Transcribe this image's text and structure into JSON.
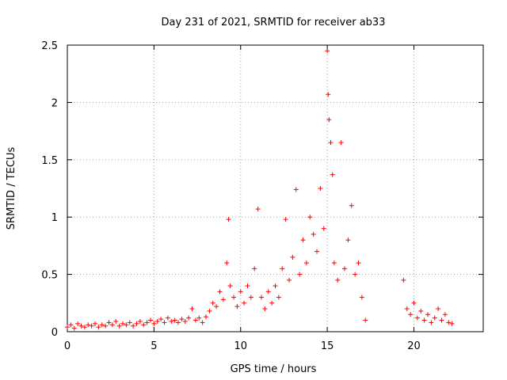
{
  "chart_data": {
    "type": "scatter",
    "title": "Day 231 of 2021, SRMTID for receiver ab33",
    "xlabel": "GPS time / hours",
    "ylabel": "SRMTID / TECUs",
    "xlim": [
      0,
      24
    ],
    "ylim": [
      0,
      2.5
    ],
    "x_ticks": [
      0,
      5,
      10,
      15,
      20
    ],
    "x_tick_labels": [
      "0",
      "5",
      "10",
      "15",
      "20"
    ],
    "y_ticks": [
      0,
      0.5,
      1,
      1.5,
      2,
      2.5
    ],
    "y_tick_labels": [
      "0",
      "0.5",
      "1",
      "1.5",
      "2",
      "2.5"
    ],
    "grid": true,
    "marker": "+",
    "color": "#ff0000",
    "series": [
      {
        "name": "SRMTID",
        "points": [
          [
            0.0,
            0.04
          ],
          [
            0.2,
            0.06
          ],
          [
            0.4,
            0.03
          ],
          [
            0.6,
            0.07
          ],
          [
            0.8,
            0.05
          ],
          [
            1.0,
            0.04
          ],
          [
            1.2,
            0.06
          ],
          [
            1.4,
            0.05
          ],
          [
            1.6,
            0.07
          ],
          [
            1.8,
            0.04
          ],
          [
            2.0,
            0.06
          ],
          [
            2.2,
            0.05
          ],
          [
            2.4,
            0.08
          ],
          [
            2.6,
            0.06
          ],
          [
            2.8,
            0.09
          ],
          [
            3.0,
            0.05
          ],
          [
            3.2,
            0.07
          ],
          [
            3.4,
            0.06
          ],
          [
            3.6,
            0.08
          ],
          [
            3.8,
            0.05
          ],
          [
            4.0,
            0.07
          ],
          [
            4.2,
            0.09
          ],
          [
            4.4,
            0.06
          ],
          [
            4.6,
            0.08
          ],
          [
            4.8,
            0.1
          ],
          [
            5.0,
            0.07
          ],
          [
            5.2,
            0.09
          ],
          [
            5.4,
            0.11
          ],
          [
            5.6,
            0.08
          ],
          [
            5.8,
            0.12
          ],
          [
            6.0,
            0.09
          ],
          [
            6.2,
            0.1
          ],
          [
            6.4,
            0.08
          ],
          [
            6.6,
            0.11
          ],
          [
            6.8,
            0.09
          ],
          [
            7.0,
            0.12
          ],
          [
            7.2,
            0.2
          ],
          [
            7.4,
            0.1
          ],
          [
            7.6,
            0.12
          ],
          [
            7.8,
            0.08
          ],
          [
            8.0,
            0.13
          ],
          [
            8.2,
            0.18
          ],
          [
            8.4,
            0.25
          ],
          [
            8.6,
            0.22
          ],
          [
            8.8,
            0.35
          ],
          [
            9.0,
            0.28
          ],
          [
            9.2,
            0.6
          ],
          [
            9.3,
            0.98
          ],
          [
            9.4,
            0.4
          ],
          [
            9.6,
            0.3
          ],
          [
            9.8,
            0.22
          ],
          [
            10.0,
            0.35
          ],
          [
            10.2,
            0.25
          ],
          [
            10.4,
            0.4
          ],
          [
            10.6,
            0.3
          ],
          [
            10.8,
            0.55
          ],
          [
            11.0,
            1.07
          ],
          [
            11.2,
            0.3
          ],
          [
            11.4,
            0.2
          ],
          [
            11.6,
            0.35
          ],
          [
            11.8,
            0.25
          ],
          [
            12.0,
            0.4
          ],
          [
            12.2,
            0.3
          ],
          [
            12.4,
            0.55
          ],
          [
            12.6,
            0.98
          ],
          [
            12.8,
            0.45
          ],
          [
            13.0,
            0.65
          ],
          [
            13.2,
            1.24
          ],
          [
            13.4,
            0.5
          ],
          [
            13.6,
            0.8
          ],
          [
            13.8,
            0.6
          ],
          [
            14.0,
            1.0
          ],
          [
            14.2,
            0.85
          ],
          [
            14.4,
            0.7
          ],
          [
            14.6,
            1.25
          ],
          [
            14.8,
            0.9
          ],
          [
            15.0,
            2.45
          ],
          [
            15.05,
            2.07
          ],
          [
            15.1,
            1.85
          ],
          [
            15.2,
            1.65
          ],
          [
            15.3,
            1.37
          ],
          [
            15.4,
            0.6
          ],
          [
            15.6,
            0.45
          ],
          [
            15.8,
            1.65
          ],
          [
            16.0,
            0.55
          ],
          [
            16.2,
            0.8
          ],
          [
            16.4,
            1.1
          ],
          [
            16.6,
            0.5
          ],
          [
            16.8,
            0.6
          ],
          [
            17.0,
            0.3
          ],
          [
            17.2,
            0.1
          ],
          [
            19.4,
            0.45
          ],
          [
            19.6,
            0.2
          ],
          [
            19.8,
            0.15
          ],
          [
            20.0,
            0.25
          ],
          [
            20.2,
            0.12
          ],
          [
            20.4,
            0.18
          ],
          [
            20.6,
            0.1
          ],
          [
            20.8,
            0.15
          ],
          [
            21.0,
            0.08
          ],
          [
            21.2,
            0.12
          ],
          [
            21.4,
            0.2
          ],
          [
            21.6,
            0.1
          ],
          [
            21.8,
            0.15
          ],
          [
            22.0,
            0.08
          ],
          [
            22.2,
            0.07
          ]
        ]
      }
    ]
  }
}
